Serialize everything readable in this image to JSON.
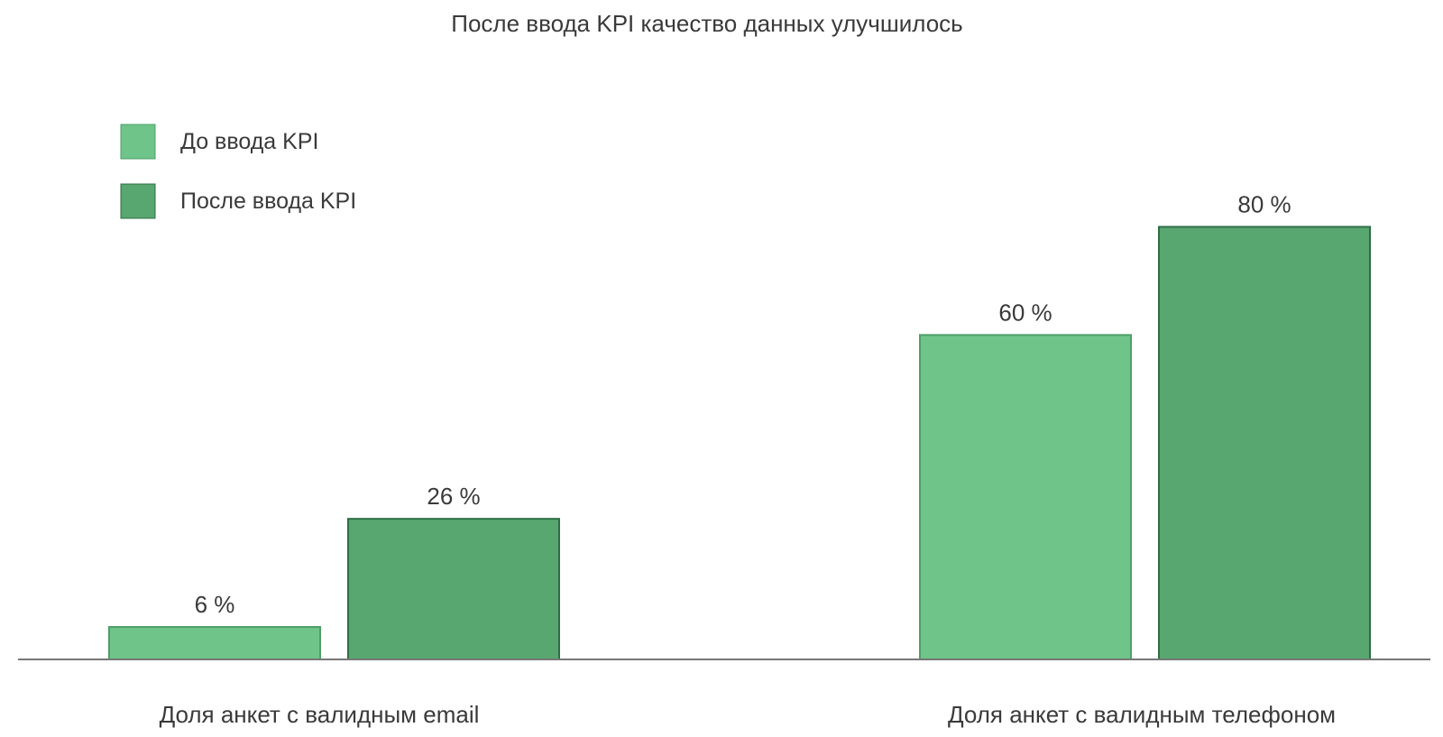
{
  "chart_data": {
    "type": "bar",
    "title": "После ввода KPI качество данных улучшилось",
    "categories": [
      "Доля анкет с валидным email",
      "Доля анкет с валидным телефоном"
    ],
    "series": [
      {
        "name": "До ввода KPI",
        "values": [
          6,
          60
        ],
        "value_labels": [
          "6 %",
          "60 %"
        ],
        "color": "#6fc48a",
        "stroke": "#4e9e68"
      },
      {
        "name": "После ввода KPI",
        "values": [
          26,
          80
        ],
        "value_labels": [
          "26 %",
          "80 %"
        ],
        "color": "#58a670",
        "stroke": "#2f6e45"
      }
    ],
    "ylim": [
      0,
      100
    ],
    "grid": false,
    "legend_position": "top-left",
    "baseline_color": "#777777"
  }
}
